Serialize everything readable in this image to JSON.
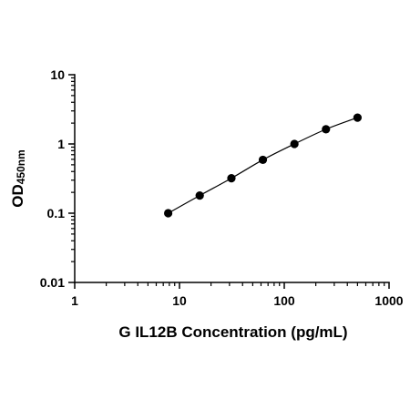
{
  "chart_data": {
    "type": "scatter",
    "title": "",
    "xlabel": "G IL12B Concentration (pg/mL)",
    "ylabel": {
      "main": "OD",
      "subscript": "450nm"
    },
    "x_scale": "log",
    "y_scale": "log",
    "xlim": [
      1,
      1000
    ],
    "ylim": [
      0.01,
      10
    ],
    "x_ticks": [
      {
        "value": 1,
        "label": "1"
      },
      {
        "value": 10,
        "label": "10"
      },
      {
        "value": 100,
        "label": "100"
      },
      {
        "value": 1000,
        "label": "1000"
      }
    ],
    "y_ticks": [
      {
        "value": 0.01,
        "label": "0.01"
      },
      {
        "value": 0.1,
        "label": "0.1"
      },
      {
        "value": 1,
        "label": "1"
      },
      {
        "value": 10,
        "label": "10"
      }
    ],
    "minor_ticks": true,
    "grid": false,
    "legend": "none",
    "series": [
      {
        "marker": "circle",
        "fitted_curve": true,
        "color": "#000000",
        "points": [
          {
            "x": 7.8,
            "y": 0.1
          },
          {
            "x": 15.6,
            "y": 0.18
          },
          {
            "x": 31.3,
            "y": 0.32
          },
          {
            "x": 62.5,
            "y": 0.59
          },
          {
            "x": 125,
            "y": 1.0
          },
          {
            "x": 250,
            "y": 1.63
          },
          {
            "x": 500,
            "y": 2.4
          }
        ]
      }
    ]
  }
}
